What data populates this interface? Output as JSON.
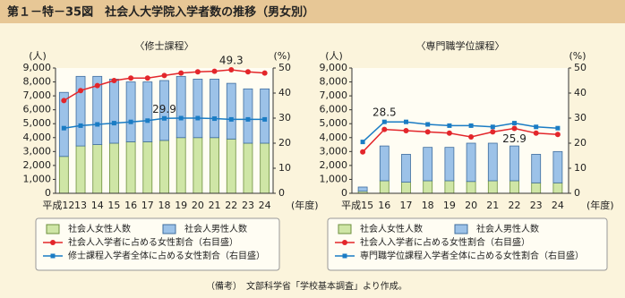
{
  "header": {
    "title": "第１－特－35図　社会人大学院入学者数の推移（男女別）"
  },
  "note": "（備考）　文部科学省「学校基本調査」より作成。",
  "chart_data": [
    {
      "type": "combo",
      "subtitle": "〈修士課程〉",
      "y_unit": "(人)",
      "y2_unit": "(%)",
      "x_unit": "(年度)",
      "categories": [
        "平成12",
        "13",
        "14",
        "15",
        "16",
        "17",
        "18",
        "19",
        "20",
        "21",
        "22",
        "23",
        "24"
      ],
      "ylim": [
        0,
        9000
      ],
      "yticks": [
        0,
        {
          "value": 1000,
          "label": "1,000"
        },
        {
          "value": 2000,
          "label": "2,000"
        },
        {
          "value": 3000,
          "label": "3,000"
        },
        {
          "value": 4000,
          "label": "4,000"
        },
        {
          "value": 5000,
          "label": "5,000"
        },
        {
          "value": 6000,
          "label": "6,000"
        },
        {
          "value": 7000,
          "label": "7,000"
        },
        {
          "value": 8000,
          "label": "8,000"
        },
        {
          "value": 9000,
          "label": "9,000"
        }
      ],
      "y2lim": [
        0,
        50
      ],
      "y2ticks": [
        0,
        10,
        20,
        30,
        40,
        50
      ],
      "series": [
        {
          "name": "社会人女性人数",
          "type": "bar",
          "color": "#cfe6a6",
          "values": [
            2650,
            3400,
            3500,
            3600,
            3700,
            3700,
            3800,
            4000,
            4000,
            4000,
            3900,
            3600,
            3600
          ]
        },
        {
          "name": "社会人男性人数",
          "type": "bar",
          "color": "#9cc2e8",
          "values": [
            4600,
            5000,
            4900,
            4600,
            4300,
            4300,
            4300,
            4400,
            4200,
            4200,
            4000,
            3900,
            3900
          ]
        },
        {
          "name": "社会人入学者に占める女性割合（右目盛）",
          "type": "line",
          "axis": "y2",
          "color": "#e3262b",
          "values": [
            37,
            41,
            43,
            45,
            46,
            46,
            47,
            48,
            48.5,
            48.7,
            49.3,
            48.5,
            48
          ],
          "value_labels": [
            null,
            null,
            null,
            null,
            null,
            null,
            null,
            null,
            null,
            null,
            "49.3",
            null,
            null
          ]
        },
        {
          "name": "修士課程入学者全体に占める女性割合（右目盛）",
          "type": "line",
          "axis": "y2",
          "color": "#1a7cc4",
          "values": [
            26,
            27,
            27.5,
            28,
            28.5,
            29,
            29.9,
            30,
            30,
            29.8,
            29.5,
            29.5,
            29.5
          ],
          "value_labels": [
            null,
            null,
            null,
            null,
            null,
            null,
            "29.9",
            null,
            null,
            null,
            null,
            null,
            null
          ]
        }
      ]
    },
    {
      "type": "combo",
      "subtitle": "〈専門職学位課程〉",
      "y_unit": "(人)",
      "y2_unit": "(%)",
      "x_unit": "(年度)",
      "categories": [
        "平成15",
        "16",
        "17",
        "18",
        "19",
        "20",
        "21",
        "22",
        "23",
        "24"
      ],
      "ylim": [
        0,
        9000
      ],
      "yticks": [
        0,
        {
          "value": 1000,
          "label": "1,000"
        },
        {
          "value": 2000,
          "label": "2,000"
        },
        {
          "value": 3000,
          "label": "3,000"
        },
        {
          "value": 4000,
          "label": "4,000"
        },
        {
          "value": 5000,
          "label": "5,000"
        },
        {
          "value": 6000,
          "label": "6,000"
        },
        {
          "value": 7000,
          "label": "7,000"
        },
        {
          "value": 8000,
          "label": "8,000"
        },
        {
          "value": 9000,
          "label": "9,000"
        }
      ],
      "y2lim": [
        0,
        50
      ],
      "y2ticks": [
        0,
        10,
        20,
        30,
        40,
        50
      ],
      "series": [
        {
          "name": "社会人女性人数",
          "type": "bar",
          "color": "#cfe6a6",
          "values": [
            150,
            900,
            800,
            900,
            900,
            850,
            900,
            900,
            750,
            750
          ]
        },
        {
          "name": "社会人男性人数",
          "type": "bar",
          "color": "#9cc2e8",
          "values": [
            300,
            2500,
            2000,
            2400,
            2400,
            2750,
            2700,
            2500,
            2050,
            2250
          ]
        },
        {
          "name": "社会人入学者に占める女性割合（右目盛）",
          "type": "line",
          "axis": "y2",
          "color": "#e3262b",
          "values": [
            16.5,
            25.5,
            25,
            24.5,
            24,
            22.5,
            24.5,
            25.9,
            24,
            23.5
          ],
          "value_labels": [
            null,
            null,
            null,
            null,
            null,
            null,
            null,
            "25.9",
            null,
            null
          ]
        },
        {
          "name": "専門職学位課程入学者全体に占める女性割合（右目盛）",
          "type": "line",
          "axis": "y2",
          "color": "#1a7cc4",
          "values": [
            20.5,
            28.5,
            28.5,
            27.5,
            27,
            27,
            26.5,
            28,
            26.5,
            26
          ],
          "value_labels": [
            null,
            "28.5",
            null,
            null,
            null,
            null,
            null,
            null,
            null,
            null
          ]
        }
      ]
    }
  ]
}
